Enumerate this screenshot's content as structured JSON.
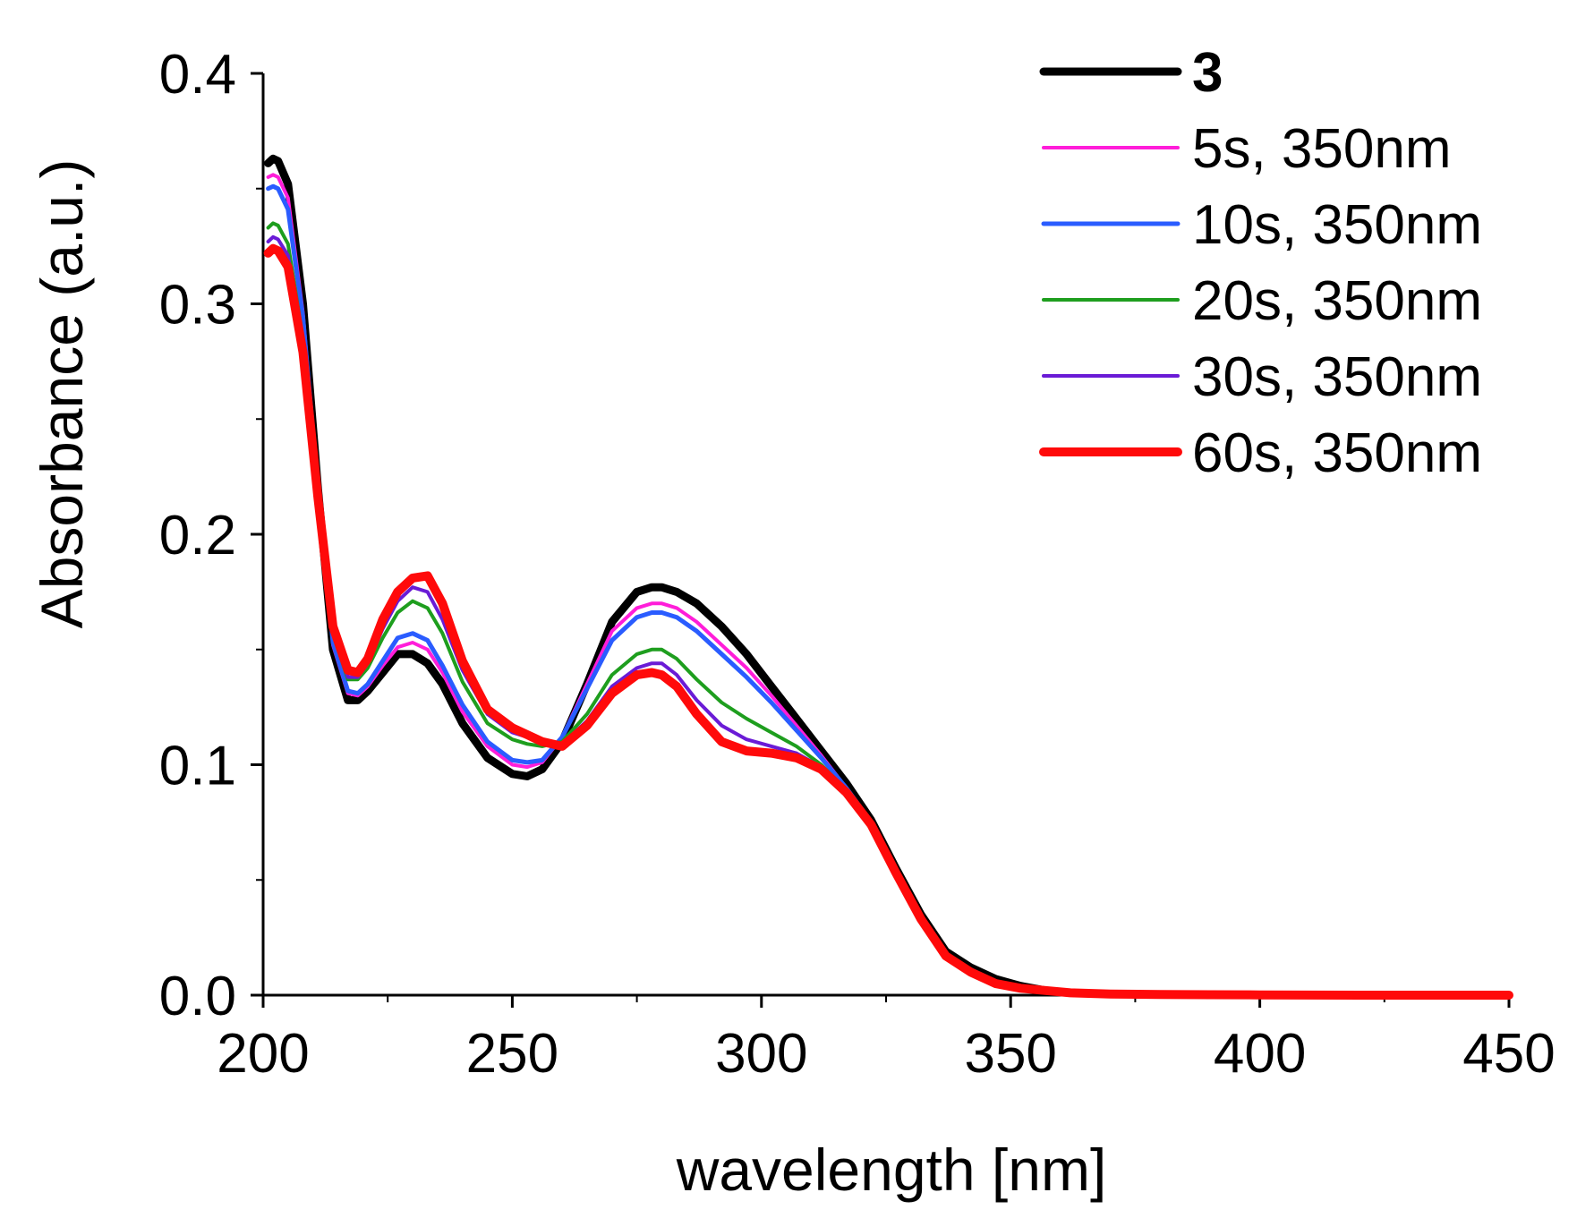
{
  "chart_data": {
    "type": "line",
    "title": "",
    "xlabel": "wavelength [nm]",
    "ylabel": "Absorbance (a.u.)",
    "xlim": [
      200,
      450
    ],
    "ylim": [
      0.0,
      0.4
    ],
    "x_ticks": [
      200,
      250,
      300,
      350,
      400,
      450
    ],
    "x_tick_labels": [
      "200",
      "250",
      "300",
      "350",
      "400",
      "450"
    ],
    "y_ticks": [
      0.0,
      0.1,
      0.2,
      0.3,
      0.4
    ],
    "y_tick_labels": [
      "0.0",
      "0.1",
      "0.2",
      "0.3",
      "0.4"
    ],
    "legend_position": "top-right",
    "grid": false,
    "x": [
      201,
      202,
      203,
      205,
      208,
      211,
      214,
      217,
      219,
      221,
      224,
      227,
      230,
      233,
      236,
      240,
      245,
      250,
      253,
      256,
      260,
      265,
      270,
      275,
      278,
      280,
      283,
      287,
      292,
      297,
      302,
      307,
      312,
      317,
      322,
      327,
      332,
      337,
      342,
      347,
      352,
      357,
      362,
      370,
      380,
      390,
      400,
      420,
      450
    ],
    "series": [
      {
        "name": "3",
        "color": "#000000",
        "bold": true,
        "line_width": 9,
        "values": [
          0.361,
          0.363,
          0.362,
          0.352,
          0.3,
          0.22,
          0.15,
          0.128,
          0.128,
          0.132,
          0.14,
          0.148,
          0.148,
          0.144,
          0.135,
          0.118,
          0.103,
          0.096,
          0.095,
          0.098,
          0.11,
          0.135,
          0.162,
          0.175,
          0.177,
          0.177,
          0.175,
          0.17,
          0.16,
          0.148,
          0.134,
          0.12,
          0.106,
          0.092,
          0.076,
          0.055,
          0.035,
          0.019,
          0.012,
          0.007,
          0.004,
          0.002,
          0.001,
          0.0005,
          0.0003,
          0.0002,
          0.0001,
          0.0,
          0.0
        ]
      },
      {
        "name": "5s, 350nm",
        "color": "#ff1dd9",
        "bold": false,
        "line_width": 4,
        "values": [
          0.355,
          0.356,
          0.355,
          0.346,
          0.296,
          0.22,
          0.152,
          0.131,
          0.13,
          0.134,
          0.143,
          0.151,
          0.153,
          0.15,
          0.14,
          0.123,
          0.108,
          0.1,
          0.099,
          0.101,
          0.112,
          0.135,
          0.158,
          0.168,
          0.17,
          0.17,
          0.168,
          0.162,
          0.152,
          0.142,
          0.13,
          0.117,
          0.104,
          0.09,
          0.075,
          0.054,
          0.034,
          0.018,
          0.011,
          0.006,
          0.003,
          0.002,
          0.001,
          0.0005,
          0.0003,
          0.0002,
          0.0001,
          0.0,
          0.0
        ]
      },
      {
        "name": "10s, 350nm",
        "color": "#2a5cff",
        "bold": false,
        "line_width": 5,
        "values": [
          0.35,
          0.351,
          0.35,
          0.341,
          0.294,
          0.22,
          0.153,
          0.132,
          0.131,
          0.135,
          0.145,
          0.155,
          0.157,
          0.154,
          0.143,
          0.126,
          0.11,
          0.102,
          0.101,
          0.102,
          0.112,
          0.133,
          0.154,
          0.164,
          0.166,
          0.166,
          0.164,
          0.158,
          0.148,
          0.138,
          0.127,
          0.115,
          0.103,
          0.09,
          0.075,
          0.054,
          0.034,
          0.018,
          0.011,
          0.006,
          0.003,
          0.002,
          0.001,
          0.0005,
          0.0003,
          0.0002,
          0.0001,
          0.0,
          0.0
        ]
      },
      {
        "name": "20s, 350nm",
        "color": "#1e9e1e",
        "bold": false,
        "line_width": 4,
        "values": [
          0.333,
          0.335,
          0.334,
          0.326,
          0.285,
          0.218,
          0.157,
          0.137,
          0.137,
          0.142,
          0.155,
          0.166,
          0.171,
          0.168,
          0.157,
          0.136,
          0.118,
          0.111,
          0.109,
          0.108,
          0.11,
          0.122,
          0.139,
          0.148,
          0.15,
          0.15,
          0.146,
          0.137,
          0.127,
          0.12,
          0.114,
          0.108,
          0.1,
          0.089,
          0.075,
          0.054,
          0.034,
          0.018,
          0.011,
          0.006,
          0.003,
          0.002,
          0.001,
          0.0005,
          0.0003,
          0.0002,
          0.0001,
          0.0,
          0.0
        ]
      },
      {
        "name": "30s, 350nm",
        "color": "#6a1bd6",
        "bold": false,
        "line_width": 4,
        "values": [
          0.327,
          0.329,
          0.328,
          0.321,
          0.282,
          0.217,
          0.158,
          0.138,
          0.138,
          0.144,
          0.159,
          0.171,
          0.177,
          0.175,
          0.163,
          0.141,
          0.122,
          0.114,
          0.112,
          0.11,
          0.109,
          0.119,
          0.134,
          0.142,
          0.144,
          0.144,
          0.139,
          0.128,
          0.117,
          0.111,
          0.108,
          0.105,
          0.099,
          0.089,
          0.075,
          0.054,
          0.034,
          0.018,
          0.011,
          0.006,
          0.003,
          0.002,
          0.001,
          0.0005,
          0.0003,
          0.0002,
          0.0001,
          0.0,
          0.0
        ]
      },
      {
        "name": "60s, 350nm",
        "color": "#ff0a0a",
        "bold": false,
        "line_width": 10,
        "values": [
          0.322,
          0.324,
          0.323,
          0.316,
          0.279,
          0.216,
          0.16,
          0.141,
          0.14,
          0.146,
          0.163,
          0.175,
          0.181,
          0.182,
          0.17,
          0.145,
          0.124,
          0.116,
          0.113,
          0.11,
          0.108,
          0.117,
          0.131,
          0.139,
          0.14,
          0.139,
          0.134,
          0.122,
          0.11,
          0.106,
          0.105,
          0.103,
          0.098,
          0.088,
          0.074,
          0.053,
          0.033,
          0.017,
          0.01,
          0.005,
          0.003,
          0.002,
          0.001,
          0.0005,
          0.0003,
          0.0002,
          0.0001,
          0.0,
          0.0
        ]
      }
    ]
  }
}
